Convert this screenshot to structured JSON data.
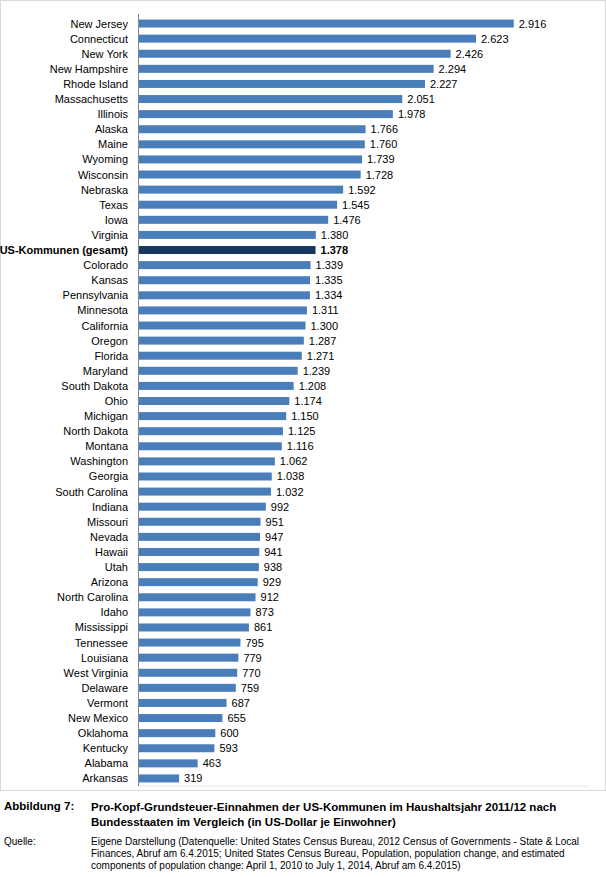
{
  "chart_data": {
    "type": "bar",
    "orientation": "horizontal",
    "title": "Pro-Kopf-Grundsteuer-Einnahmen der US-Kommunen im Haushaltsjahr 2011/12 nach Bundesstaaten im Vergleich (in US-Dollar je Einwohner)",
    "caption_label": "Abbildung 7:",
    "source_label": "Quelle:",
    "source": "Eigene Darstellung (Datenquelle: United States Census Bureau, 2012 Census of Governments - State & Local Finances, Abruf am 6.4.2015; United States Census Bureau, Population, population change, and estimated components of population change: April 1, 2010 to July 1, 2014, Abruf am 6.4.2015)",
    "categories": [
      "New Jersey",
      "Connecticut",
      "New York",
      "New Hampshire",
      "Rhode Island",
      "Massachusetts",
      "Illinois",
      "Alaska",
      "Maine",
      "Wyoming",
      "Wisconsin",
      "Nebraska",
      "Texas",
      "Iowa",
      "Virginia",
      "US-Kommunen (gesamt)",
      "Colorado",
      "Kansas",
      "Pennsylvania",
      "Minnesota",
      "California",
      "Oregon",
      "Florida",
      "Maryland",
      "South Dakota",
      "Ohio",
      "Michigan",
      "North Dakota",
      "Montana",
      "Washington",
      "Georgia",
      "South Carolina",
      "Indiana",
      "Missouri",
      "Nevada",
      "Hawaii",
      "Utah",
      "Arizona",
      "North Carolina",
      "Idaho",
      "Mississippi",
      "Tennessee",
      "Louisiana",
      "West Virginia",
      "Delaware",
      "Vermont",
      "New Mexico",
      "Oklahoma",
      "Kentucky",
      "Alabama",
      "Arkansas"
    ],
    "values": [
      2916,
      2623,
      2426,
      2294,
      2227,
      2051,
      1978,
      1766,
      1760,
      1739,
      1728,
      1592,
      1545,
      1476,
      1380,
      1378,
      1339,
      1335,
      1334,
      1311,
      1300,
      1287,
      1271,
      1239,
      1208,
      1174,
      1150,
      1125,
      1116,
      1062,
      1038,
      1032,
      992,
      951,
      947,
      941,
      938,
      929,
      912,
      873,
      861,
      795,
      779,
      770,
      759,
      687,
      655,
      600,
      593,
      463,
      319
    ],
    "value_labels": [
      "2.916",
      "2.623",
      "2.426",
      "2.294",
      "2.227",
      "2.051",
      "1.978",
      "1.766",
      "1.760",
      "1.739",
      "1.728",
      "1.592",
      "1.545",
      "1.476",
      "1.380",
      "1.378",
      "1.339",
      "1.335",
      "1.334",
      "1.311",
      "1.300",
      "1.287",
      "1.271",
      "1.239",
      "1.208",
      "1.174",
      "1.150",
      "1.125",
      "1.116",
      "1.062",
      "1.038",
      "1.032",
      "992",
      "951",
      "947",
      "941",
      "938",
      "929",
      "912",
      "873",
      "861",
      "795",
      "779",
      "770",
      "759",
      "687",
      "655",
      "600",
      "593",
      "463",
      "319"
    ],
    "colors": [
      "#4a7ebb",
      "#4a7ebb",
      "#4a7ebb",
      "#4a7ebb",
      "#4a7ebb",
      "#4a7ebb",
      "#4a7ebb",
      "#4a7ebb",
      "#4a7ebb",
      "#4a7ebb",
      "#4a7ebb",
      "#4a7ebb",
      "#4a7ebb",
      "#4a7ebb",
      "#4a7ebb",
      "#17375e",
      "#4a7ebb",
      "#4a7ebb",
      "#4a7ebb",
      "#4a7ebb",
      "#4a7ebb",
      "#4a7ebb",
      "#4a7ebb",
      "#4a7ebb",
      "#4a7ebb",
      "#4a7ebb",
      "#4a7ebb",
      "#4a7ebb",
      "#4a7ebb",
      "#4a7ebb",
      "#4a7ebb",
      "#4a7ebb",
      "#4a7ebb",
      "#4a7ebb",
      "#4a7ebb",
      "#4a7ebb",
      "#4a7ebb",
      "#4a7ebb",
      "#4a7ebb",
      "#4a7ebb",
      "#4a7ebb",
      "#4a7ebb",
      "#4a7ebb",
      "#4a7ebb",
      "#4a7ebb",
      "#4a7ebb",
      "#4a7ebb",
      "#4a7ebb",
      "#4a7ebb",
      "#4a7ebb",
      "#4a7ebb"
    ],
    "xlim": [
      0,
      3500
    ],
    "data_labels": true,
    "tick_labels": "y",
    "grid": false
  }
}
